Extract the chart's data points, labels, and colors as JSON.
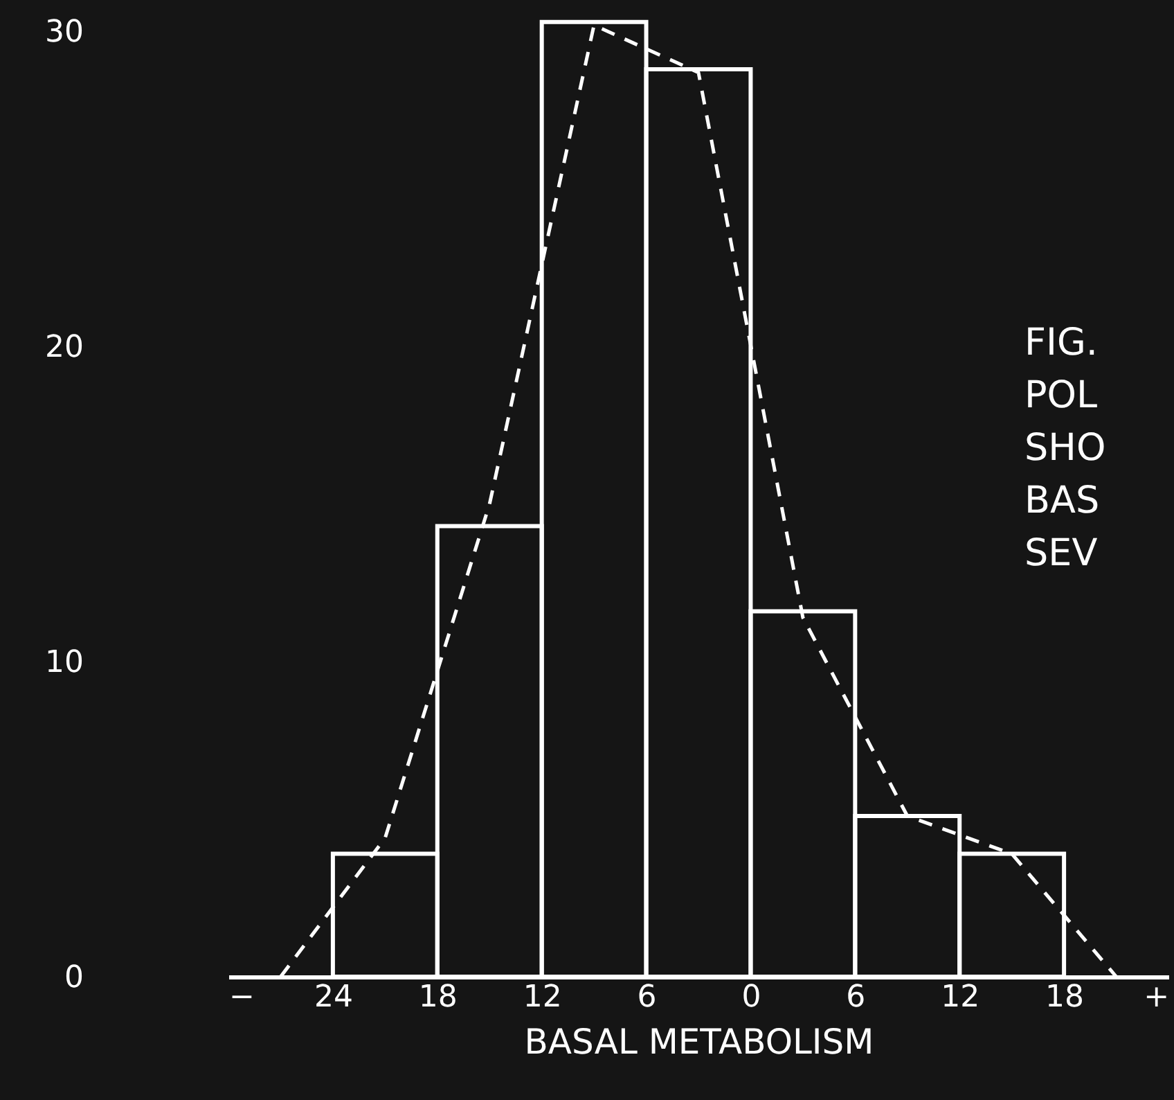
{
  "chart_data": {
    "type": "histogram",
    "xlabel": "BASAL METABOLISM",
    "annotations": [
      "FIG.",
      "POL",
      "SHO",
      "BAS",
      "SEV"
    ],
    "series": [
      {
        "color": "#ffffff",
        "bins": [
          -24,
          -18,
          -12,
          -6,
          0,
          6,
          12,
          18
        ],
        "values": [
          3.9,
          14.3,
          30.3,
          28.8,
          11.6,
          5.1,
          3.9
        ]
      },
      {
        "type": "line",
        "color": "#ffffff",
        "line_style": "dashed",
        "x": [
          -27,
          -21,
          -15,
          -9,
          -3,
          3,
          9,
          15,
          21
        ],
        "values": [
          0,
          4.4,
          15,
          30.2,
          28.7,
          11.4,
          5.1,
          3.9,
          0
        ]
      }
    ],
    "xlim": [
      -30,
      24
    ],
    "xticks": [
      {
        "value": -30,
        "label": "−"
      },
      {
        "value": -24,
        "label": "24"
      },
      {
        "value": -18,
        "label": "18"
      },
      {
        "value": -12,
        "label": "12"
      },
      {
        "value": -6,
        "label": "6"
      },
      0,
      6,
      12,
      18,
      {
        "value": 24,
        "label": "+"
      }
    ],
    "ylim": [
      0,
      31
    ],
    "yticks": [
      0,
      10,
      20,
      30
    ],
    "grid": false
  }
}
